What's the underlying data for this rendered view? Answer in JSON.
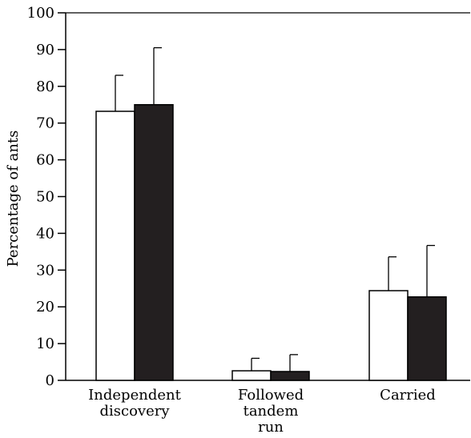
{
  "chart_data": {
    "type": "bar",
    "title": "",
    "xlabel": "",
    "ylabel": "Percentage of ants",
    "ylim": [
      0,
      100
    ],
    "yticks": [
      "0",
      "10",
      "20",
      "30",
      "40",
      "50",
      "60",
      "70",
      "80",
      "90",
      "100"
    ],
    "grid": false,
    "legend": "none",
    "categories": [
      [
        "Independent",
        "discovery"
      ],
      [
        "Followed",
        "tandem",
        "run"
      ],
      [
        "Carried"
      ]
    ],
    "series": [
      {
        "values": [
          73.2,
          2.6,
          24.4
        ],
        "errors": [
          9.8,
          3.4,
          9.2
        ],
        "color": "#ffffff"
      },
      {
        "values": [
          75.0,
          2.4,
          22.7
        ],
        "errors": [
          15.5,
          4.6,
          14.0
        ],
        "color": "#231f20"
      }
    ]
  }
}
